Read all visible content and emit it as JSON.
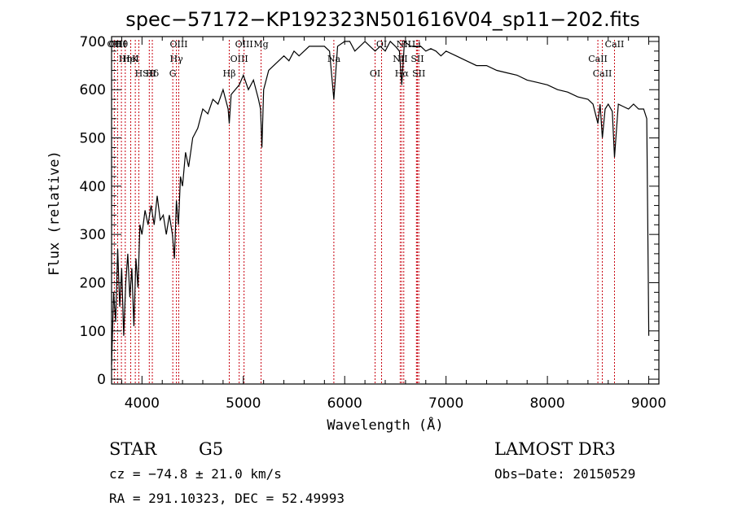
{
  "chart_data": {
    "type": "line",
    "title": "spec−57172−KP192323N501616V04_sp11−202.fits",
    "xlabel": "Wavelength (Å)",
    "ylabel": "Flux (relative)",
    "xlim": [
      3700,
      9100
    ],
    "ylim": [
      -10,
      710
    ],
    "xticks": [
      4000,
      5000,
      6000,
      7000,
      8000,
      9000
    ],
    "yticks": [
      0,
      100,
      200,
      300,
      400,
      500,
      600,
      700
    ],
    "series": [
      {
        "name": "flux",
        "x": [
          3700,
          3720,
          3740,
          3760,
          3780,
          3800,
          3820,
          3840,
          3860,
          3880,
          3900,
          3920,
          3940,
          3960,
          3980,
          4000,
          4030,
          4060,
          4090,
          4120,
          4150,
          4180,
          4210,
          4240,
          4270,
          4300,
          4320,
          4340,
          4360,
          4380,
          4400,
          4430,
          4460,
          4500,
          4550,
          4600,
          4650,
          4700,
          4750,
          4800,
          4850,
          4861,
          4880,
          4920,
          4960,
          5000,
          5050,
          5100,
          5150,
          5170,
          5183,
          5200,
          5250,
          5300,
          5350,
          5400,
          5450,
          5500,
          5550,
          5600,
          5650,
          5700,
          5750,
          5800,
          5850,
          5893,
          5930,
          6000,
          6050,
          6100,
          6150,
          6200,
          6250,
          6300,
          6350,
          6400,
          6450,
          6500,
          6540,
          6563,
          6590,
          6650,
          6700,
          6750,
          6800,
          6850,
          6900,
          6950,
          7000,
          7100,
          7200,
          7300,
          7400,
          7500,
          7600,
          7700,
          7800,
          7900,
          8000,
          8100,
          8200,
          8300,
          8400,
          8450,
          8498,
          8520,
          8542,
          8570,
          8600,
          8640,
          8662,
          8700,
          8750,
          8800,
          8850,
          8900,
          8950,
          8980,
          8990,
          9000
        ],
        "y": [
          30,
          180,
          120,
          270,
          150,
          230,
          90,
          200,
          260,
          170,
          230,
          110,
          250,
          190,
          320,
          300,
          350,
          320,
          360,
          320,
          380,
          330,
          340,
          300,
          340,
          300,
          250,
          370,
          320,
          420,
          400,
          470,
          440,
          500,
          520,
          560,
          550,
          580,
          570,
          600,
          560,
          530,
          590,
          600,
          610,
          630,
          600,
          620,
          580,
          560,
          480,
          600,
          640,
          650,
          660,
          670,
          660,
          680,
          670,
          680,
          690,
          690,
          690,
          690,
          680,
          580,
          690,
          700,
          700,
          680,
          690,
          700,
          690,
          680,
          690,
          680,
          700,
          690,
          680,
          610,
          700,
          690,
          690,
          690,
          680,
          685,
          680,
          670,
          680,
          670,
          660,
          650,
          650,
          640,
          635,
          630,
          620,
          615,
          610,
          600,
          595,
          585,
          580,
          570,
          530,
          570,
          500,
          560,
          570,
          555,
          460,
          570,
          565,
          560,
          570,
          560,
          560,
          540,
          330,
          90
        ]
      }
    ],
    "line_markers": [
      {
        "label": "Hθ",
        "x": 3797
      },
      {
        "label": "K",
        "x": 3934
      },
      {
        "label": "Hδ",
        "x": 4102
      },
      {
        "label": "OII",
        "x": 3727
      },
      {
        "label": "HeI",
        "x": 3889
      },
      {
        "label": "SII",
        "x": 4072
      },
      {
        "label": "OIII",
        "x": 3760
      },
      {
        "label": "Hη",
        "x": 3835
      },
      {
        "label": "H",
        "x": 3969
      },
      {
        "label": "OIII",
        "x": 4363
      },
      {
        "label": "Hγ",
        "x": 4340
      },
      {
        "label": "G",
        "x": 4304
      },
      {
        "label": "OIII",
        "x": 5007
      },
      {
        "label": "OIII",
        "x": 4959
      },
      {
        "label": "Hβ",
        "x": 4861
      },
      {
        "label": "Mg",
        "x": 5175
      },
      {
        "label": "Na",
        "x": 5893
      },
      {
        "label": "OI",
        "x": 6300
      },
      {
        "label": "OI",
        "x": 6364
      },
      {
        "label": "NII",
        "x": 6548
      },
      {
        "label": "Hα",
        "x": 6563
      },
      {
        "label": "NII",
        "x": 6583
      },
      {
        "label": "SII",
        "x": 6717
      },
      {
        "label": "SII",
        "x": 6731
      },
      {
        "label": "Li",
        "x": 6708
      },
      {
        "label": "CaII",
        "x": 8498
      },
      {
        "label": "CaII",
        "x": 8542
      },
      {
        "label": "CaII",
        "x": 8662
      }
    ]
  },
  "info": {
    "object_class": "STAR",
    "subclass": "G5",
    "survey": "LAMOST DR3",
    "cz": "cz = −74.8 ± 21.0 km/s",
    "obs_date": "Obs−Date: 20150529",
    "coords": "RA = 291.10323, DEC =  52.49993"
  },
  "colors": {
    "spectrum": "#000000",
    "marker_line": "#c8000f",
    "axis": "#000000",
    "background": "#ffffff"
  }
}
